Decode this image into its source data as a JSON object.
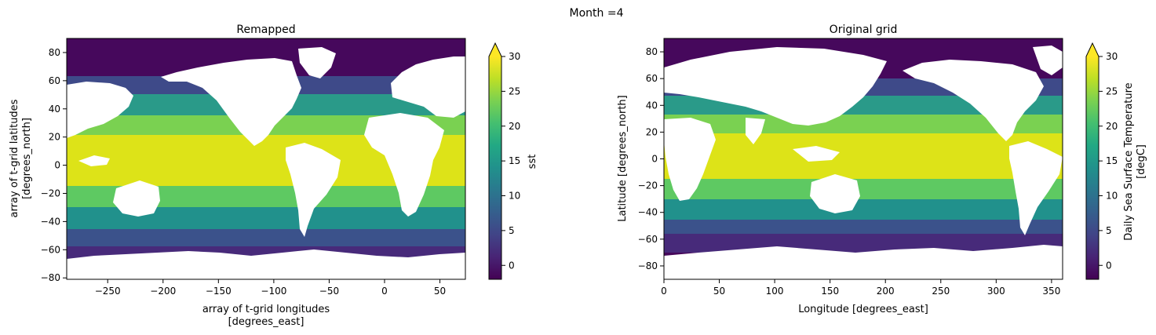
{
  "suptitle": "Month =4",
  "chart_data": [
    {
      "type": "heatmap",
      "title": "Remapped",
      "xlabel": [
        "array of t-grid longitudes",
        "[degrees_east]"
      ],
      "ylabel": [
        "array of t-grid latitudes",
        "[degrees_north]"
      ],
      "xlim": [
        -287,
        73
      ],
      "ylim": [
        -81,
        90
      ],
      "xticks": [
        -250,
        -200,
        -150,
        -100,
        -50,
        0,
        50
      ],
      "yticks": [
        -80,
        -60,
        -40,
        -20,
        0,
        20,
        40,
        60,
        80
      ],
      "colorbar": {
        "label": "sst",
        "vmin": -2,
        "vmax": 30,
        "ticks": [
          0,
          5,
          10,
          15,
          20,
          25,
          30
        ],
        "extend": "max",
        "colormap": "viridis"
      }
    },
    {
      "type": "heatmap",
      "title": "Original grid",
      "xlabel": [
        "Longitude [degrees_east]"
      ],
      "ylabel": [
        "Latitude [degrees_north]"
      ],
      "xlim": [
        0,
        360
      ],
      "ylim": [
        -90,
        90
      ],
      "xticks": [
        0,
        50,
        100,
        150,
        200,
        250,
        300,
        350
      ],
      "yticks": [
        -80,
        -60,
        -40,
        -20,
        0,
        20,
        40,
        60,
        80
      ],
      "colorbar": {
        "label": [
          "Daily Sea Surface Temperature",
          "[degC]"
        ],
        "vmin": -2,
        "vmax": 30,
        "ticks": [
          0,
          5,
          10,
          15,
          20,
          25,
          30
        ],
        "extend": "max",
        "colormap": "viridis"
      }
    }
  ]
}
